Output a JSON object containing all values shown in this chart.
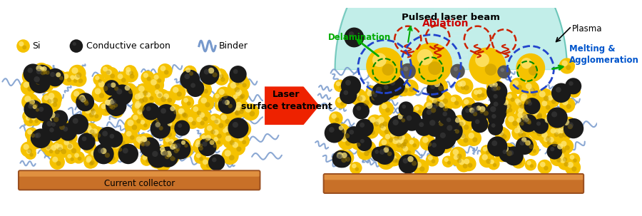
{
  "background_color": "#ffffff",
  "figure_width": 9.0,
  "figure_height": 3.03,
  "dpi": 100,
  "arrow_text": "Laser\nsurface treatment",
  "arrow_color": "#EE2200",
  "laser_beam_text": "Pulsed laser beam",
  "plasma_text": "Plasma",
  "delamination_text": "Delamination",
  "delamination_color": "#00AA00",
  "ablation_text": "Ablation",
  "ablation_color": "#CC0000",
  "melting_text": "Melting &\nAgglomeration",
  "melting_color": "#0055CC",
  "current_collector_text": "Current collector",
  "si_color": "#F5C200",
  "si_highlight": "#FFE87A",
  "si_shadow": "#B08800",
  "carbon_color": "#1a1a1a",
  "carbon_highlight": "#444444",
  "binder_color": "#7799CC",
  "collector_color": "#C87028",
  "collector_edge": "#9B5020"
}
